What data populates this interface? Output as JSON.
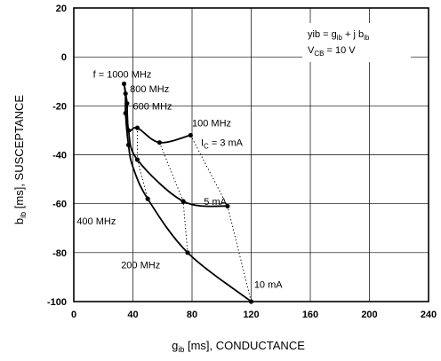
{
  "chart_data": {
    "type": "line",
    "title": "",
    "xlabel": {
      "main": "g",
      "sub": "ib",
      "rest": " [ms], CONDUCTANCE"
    },
    "ylabel": {
      "main": "b",
      "sub": "ib",
      "rest": " [ms], SUSCEPTANCE"
    },
    "xlim": [
      0,
      240
    ],
    "ylim": [
      -100,
      20
    ],
    "x_ticks": [
      0,
      40,
      80,
      120,
      160,
      200,
      240
    ],
    "y_ticks": [
      20,
      0,
      -20,
      -40,
      -60,
      -80,
      -100
    ],
    "grid": true,
    "series": [
      {
        "name": "IC = 3 mA",
        "style": "solid",
        "x": [
          34,
          35,
          36,
          37,
          43,
          58,
          79
        ],
        "y": [
          -11,
          -15,
          -19,
          -30,
          -29,
          -35,
          -32
        ]
      },
      {
        "name": "5 mA",
        "style": "solid",
        "x": [
          34,
          35,
          36,
          37,
          43,
          74,
          104
        ],
        "y": [
          -11,
          -15,
          -19,
          -30,
          -42,
          -59,
          -61
        ]
      },
      {
        "name": "10 mA",
        "style": "solid",
        "x": [
          34,
          35,
          35,
          37,
          40,
          50,
          77,
          120
        ],
        "y": [
          -11,
          -15,
          -23,
          -36,
          -45,
          -58,
          -80,
          -100
        ]
      }
    ],
    "frequency_lines": [
      {
        "label": "100 MHz",
        "style": "dotted",
        "x": [
          79,
          104,
          120
        ],
        "y": [
          -32,
          -61,
          -100
        ]
      },
      {
        "label": "200 MHz",
        "style": "dotted",
        "x": [
          58,
          74,
          77
        ],
        "y": [
          -35,
          -59,
          -80
        ]
      },
      {
        "label": "400 MHz",
        "style": "dotted",
        "x": [
          43,
          43,
          50
        ],
        "y": [
          -29,
          -42,
          -58
        ]
      }
    ],
    "markers": [
      {
        "x": 34,
        "y": -11
      },
      {
        "x": 35,
        "y": -15
      },
      {
        "x": 36,
        "y": -19
      },
      {
        "x": 35,
        "y": -23
      },
      {
        "x": 37,
        "y": -30
      },
      {
        "x": 37,
        "y": -36
      },
      {
        "x": 43,
        "y": -29
      },
      {
        "x": 43,
        "y": -42
      },
      {
        "x": 50,
        "y": -58
      },
      {
        "x": 58,
        "y": -35
      },
      {
        "x": 79,
        "y": -32
      },
      {
        "x": 74,
        "y": -59
      },
      {
        "x": 104,
        "y": -61
      },
      {
        "x": 77,
        "y": -80
      },
      {
        "x": 120,
        "y": -100
      }
    ],
    "annotations": [
      {
        "text": "f = 1000 MHz",
        "x": 13,
        "y": -7
      },
      {
        "text": "800 MHz",
        "x": 38,
        "y": -13
      },
      {
        "text": "600 MHz",
        "x": 40,
        "y": -20
      },
      {
        "text": "100 MHz",
        "x": 80,
        "y": -27
      },
      {
        "text": "400 MHz",
        "x": 2,
        "y": -67
      },
      {
        "text": "200 MHz",
        "x": 32,
        "y": -85
      },
      {
        "text": "5 mA",
        "x": 88,
        "y": -59
      },
      {
        "text": "10 mA",
        "x": 122,
        "y": -93
      }
    ],
    "ic_label": {
      "main": "I",
      "sub": "C",
      "rest": " = 3 mA",
      "x": 86,
      "y": -35
    },
    "legend": {
      "line1": {
        "pre": "yib = g",
        "sub1": "ib",
        "mid": " + j b",
        "sub2": "ib"
      },
      "line2": {
        "pre": "V",
        "sub": "CB",
        "rest": " = 10 V"
      }
    }
  }
}
